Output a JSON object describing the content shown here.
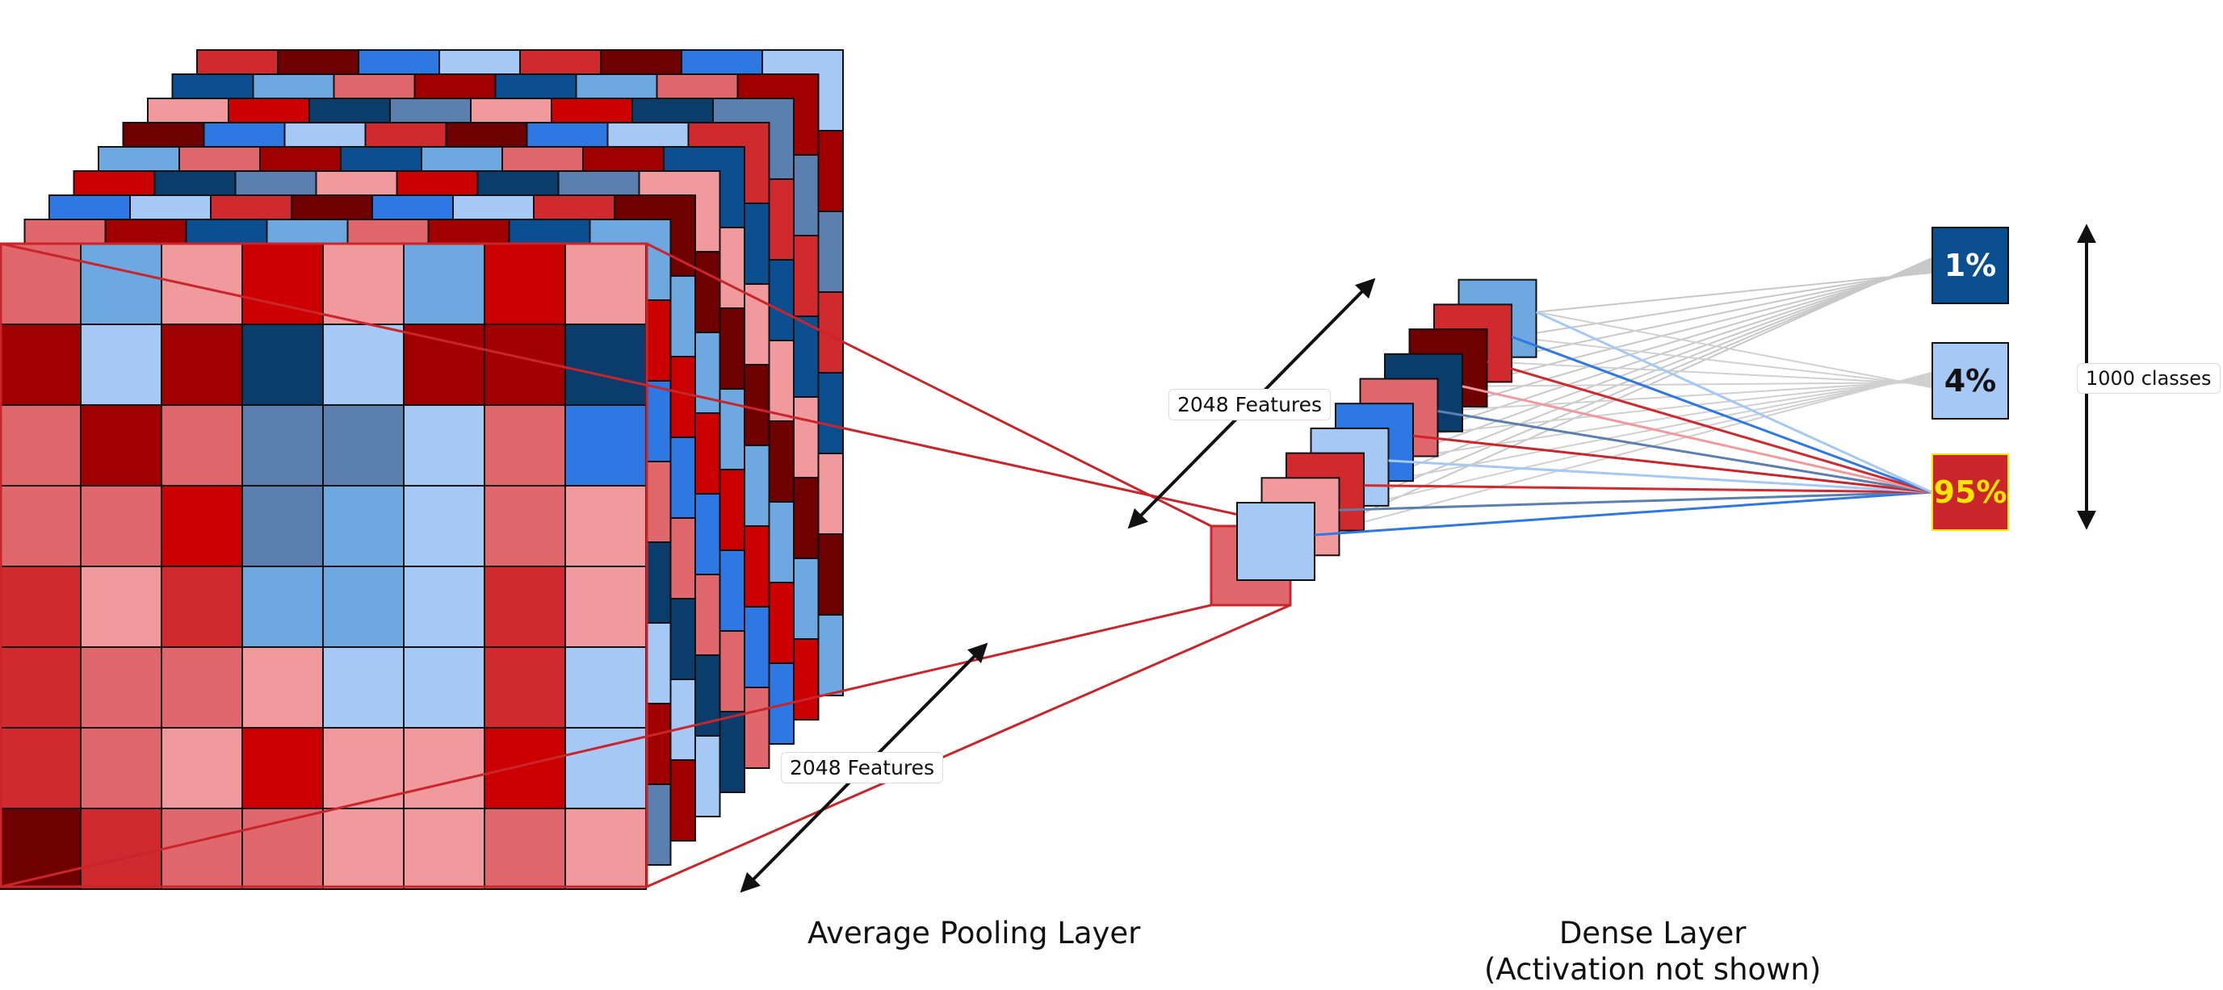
{
  "labels": {
    "features_top": "2048 Features",
    "features_bottom": "2048 Features",
    "classes": "1000 classes",
    "avg_pool": "Average Pooling Layer",
    "dense_title": "Dense Layer",
    "dense_subtitle": "(Activation not shown)"
  },
  "outputs": [
    {
      "text": "1%",
      "bg": "#0b4f91",
      "fg": "#ffffff",
      "border": "#111111"
    },
    {
      "text": "4%",
      "bg": "#a6c8f5",
      "fg": "#111111",
      "border": "#111111"
    },
    {
      "text": "95%",
      "bg": "#c9252a",
      "fg": "#ffe600",
      "border": "#ffe600"
    }
  ],
  "palette": [
    "#0a3d6b",
    "#0b4f91",
    "#2d78e3",
    "#5b7fae",
    "#6ea8e0",
    "#a6c8f5",
    "#f09a9e",
    "#e0676b",
    "#d02a2e",
    "#cc0000",
    "#a00000",
    "#6e0000"
  ],
  "front_map_grid": [
    [
      7,
      4,
      6,
      9,
      6,
      4,
      9,
      6
    ],
    [
      10,
      5,
      10,
      0,
      5,
      10,
      10,
      0
    ],
    [
      7,
      10,
      7,
      3,
      3,
      5,
      7,
      2
    ],
    [
      7,
      7,
      9,
      3,
      4,
      5,
      7,
      6
    ],
    [
      8,
      6,
      8,
      4,
      4,
      5,
      8,
      6
    ],
    [
      8,
      7,
      7,
      6,
      5,
      5,
      8,
      5
    ],
    [
      8,
      7,
      6,
      9,
      6,
      6,
      9,
      5
    ],
    [
      11,
      8,
      7,
      7,
      6,
      6,
      7,
      6
    ]
  ],
  "pooled_color": "#e0676b",
  "feature_colors": [
    "#a6c8f5",
    "#f09a9e",
    "#d02a2e",
    "#a6c8f5",
    "#2d78e3",
    "#e0676b",
    "#0a3d6b",
    "#6e0000",
    "#d02a2e",
    "#6ea8e0"
  ],
  "highlight_lines": [
    "#2d78e3",
    "#5b7fae",
    "#d02a2e",
    "#a6c8f5",
    "#c9252a",
    "#5b7fae",
    "#f09a9e",
    "#d02a2e",
    "#2d78e3",
    "#a6c8f5"
  ]
}
